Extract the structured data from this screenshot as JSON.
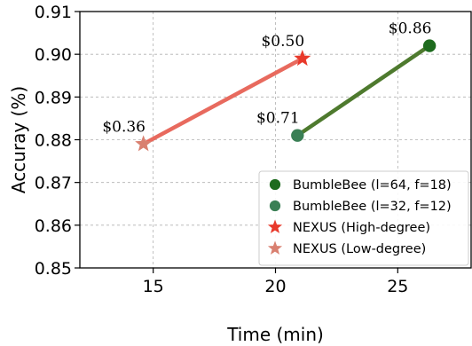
{
  "chart_data": {
    "type": "scatter",
    "xlabel": "Time (min)",
    "ylabel": "Accuray (%)",
    "xlim": [
      12,
      28
    ],
    "ylim": [
      0.85,
      0.91
    ],
    "xticks": [
      15,
      20,
      25
    ],
    "yticks": [
      0.85,
      0.86,
      0.87,
      0.88,
      0.89,
      0.9,
      0.91
    ],
    "ytick_labels": [
      "0.85",
      "0.86",
      "0.87",
      "0.88",
      "0.89",
      "0.90",
      "0.91"
    ],
    "grid": true,
    "legend_position": "bottom-right",
    "series": [
      {
        "name": "BumbleBee (l=64, f=18)",
        "marker": "circle",
        "color": "#1e6b1e",
        "x": 26.3,
        "y": 0.902,
        "label": "$0.86"
      },
      {
        "name": "BumbleBee (l=32, f=12)",
        "marker": "circle",
        "color": "#3a7f55",
        "x": 20.9,
        "y": 0.881,
        "label": "$0.71"
      },
      {
        "name": "NEXUS (High-degree)",
        "marker": "star",
        "color": "#e8392b",
        "x": 21.1,
        "y": 0.899,
        "label": "$0.50"
      },
      {
        "name": "NEXUS (Low-degree)",
        "marker": "star",
        "color": "#d98070",
        "x": 14.6,
        "y": 0.879,
        "label": "$0.36"
      }
    ],
    "lines": [
      {
        "from": [
          14.6,
          0.879
        ],
        "to": [
          21.1,
          0.899
        ],
        "color": "#e86a5e"
      },
      {
        "from": [
          20.9,
          0.881
        ],
        "to": [
          26.3,
          0.902
        ],
        "color": "#4e7a2e"
      }
    ]
  }
}
